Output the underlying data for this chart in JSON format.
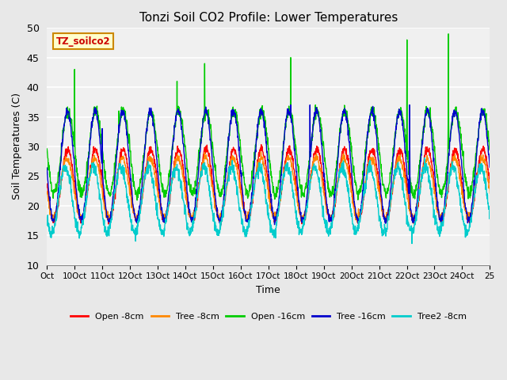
{
  "title": "Tonzi Soil CO2 Profile: Lower Temperatures",
  "xlabel": "Time",
  "ylabel": "Soil Temperatures (C)",
  "ylim": [
    10,
    50
  ],
  "background_color": "#e8e8e8",
  "plot_bg_color": "#f0f0f0",
  "label_box_text": "TZ_soilco2",
  "label_box_bg": "#ffffcc",
  "label_box_border": "#cc8800",
  "label_box_text_color": "#cc0000",
  "xtick_labels": [
    "Oct",
    "10Oct",
    "11Oct",
    "12Oct",
    "13Oct",
    "14Oct",
    "15Oct",
    "16Oct",
    "17Oct",
    "18Oct",
    "19Oct",
    "20Oct",
    "21Oct",
    "22Oct",
    "23Oct",
    "24Oct",
    "25"
  ],
  "ytick_vals": [
    10,
    15,
    20,
    25,
    30,
    35,
    40,
    45,
    50
  ],
  "legend_labels": [
    "Open -8cm",
    "Tree -8cm",
    "Open -16cm",
    "Tree -16cm",
    "Tree2 -8cm"
  ],
  "legend_colors": [
    "#ff0000",
    "#ff8800",
    "#00cc00",
    "#0000cc",
    "#00cccc"
  ]
}
